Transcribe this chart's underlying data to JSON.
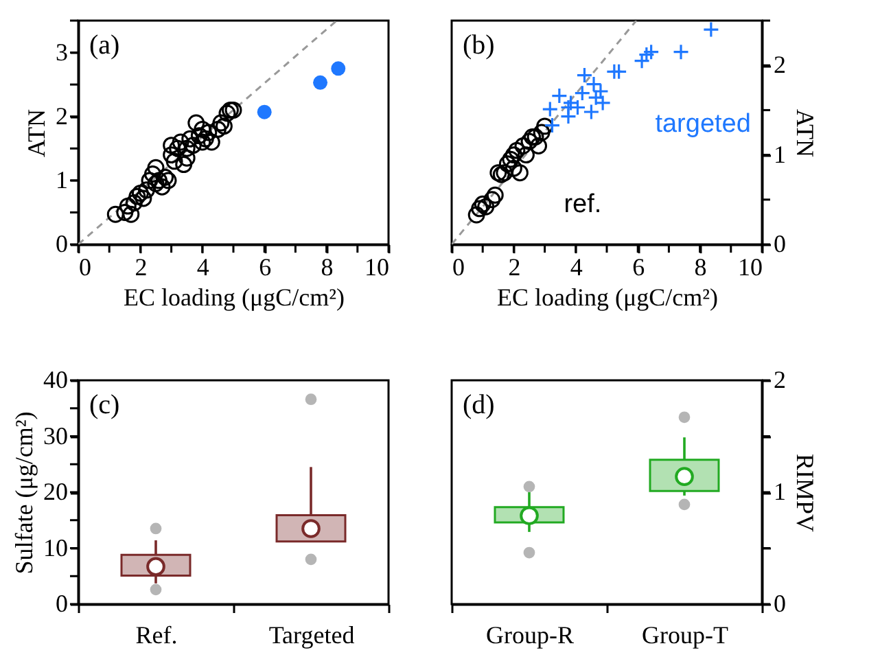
{
  "chart_data": [
    {
      "type": "scatter",
      "annotations": [
        "(a)"
      ],
      "xlabel": "EC loading (μgC/cm²)",
      "ylabel": "ATN",
      "xlim": [
        0,
        10
      ],
      "ylim": [
        0,
        3.5
      ],
      "xticks": [
        0,
        {
          "value": 1,
          "label": null
        },
        2,
        {
          "value": 3,
          "label": null
        },
        4,
        {
          "value": 5,
          "label": null
        },
        6,
        {
          "value": 7,
          "label": null
        },
        8,
        {
          "value": 9,
          "label": null
        },
        10
      ],
      "yticks": [
        0,
        {
          "value": 0.5,
          "label": null
        },
        1,
        {
          "value": 1.5,
          "label": null
        },
        2,
        {
          "value": 2.5,
          "label": null
        },
        3,
        {
          "value": 3.5,
          "label": null
        }
      ],
      "grid": false,
      "series": [
        {
          "type": "line",
          "color": "#999999",
          "line_style": "dashed",
          "marker": "none",
          "x": [
            0,
            8.33
          ],
          "values": [
            0,
            3.5
          ]
        },
        {
          "color": "#000000",
          "marker": "circle",
          "x": [
            1.2,
            1.5,
            1.6,
            1.7,
            1.8,
            1.9,
            2.0,
            2.1,
            2.2,
            2.3,
            2.4,
            2.5,
            2.5,
            2.6,
            2.7,
            2.8,
            2.9,
            3.0,
            3.0,
            3.1,
            3.2,
            3.3,
            3.4,
            3.5,
            3.5,
            3.6,
            3.7,
            3.8,
            3.9,
            4.0,
            4.0,
            4.1,
            4.2,
            4.3,
            4.5,
            4.6,
            4.7,
            4.8,
            4.9,
            5.0
          ],
          "values": [
            0.47,
            0.5,
            0.6,
            0.47,
            0.65,
            0.75,
            0.8,
            0.72,
            0.85,
            1.0,
            1.1,
            1.2,
            0.95,
            1.0,
            0.9,
            1.05,
            1.0,
            1.4,
            1.55,
            1.3,
            1.5,
            1.6,
            1.25,
            1.35,
            1.5,
            1.65,
            1.55,
            1.9,
            1.7,
            1.6,
            1.8,
            1.65,
            1.75,
            1.6,
            1.8,
            1.9,
            1.85,
            2.05,
            2.1,
            2.1
          ]
        },
        {
          "color": "#1f78ff",
          "marker": "circle",
          "x": [
            6.0,
            7.8,
            8.38
          ],
          "values": [
            2.07,
            2.53,
            2.75
          ]
        }
      ]
    },
    {
      "type": "scatter",
      "annotations": [
        "(b)"
      ],
      "xlabel": "EC loading (μgC/cm²)",
      "ylabel": "ATN",
      "xlim": [
        0,
        10
      ],
      "ylim": [
        0,
        2.5
      ],
      "xticks": [
        0,
        {
          "value": 1,
          "label": null
        },
        2,
        {
          "value": 3,
          "label": null
        },
        4,
        {
          "value": 5,
          "label": null
        },
        6,
        {
          "value": 7,
          "label": null
        },
        8,
        {
          "value": 9,
          "label": null
        },
        10
      ],
      "yticks": [
        0,
        {
          "value": 0.5,
          "label": null
        },
        1,
        {
          "value": 1.5,
          "label": null
        },
        2,
        {
          "value": 2.5,
          "label": null
        }
      ],
      "grid": false,
      "series": [
        {
          "type": "line",
          "color": "#999999",
          "line_style": "dashed",
          "marker": "none",
          "x": [
            0,
            5.95
          ],
          "values": [
            0,
            2.5
          ]
        },
        {
          "name": "ref.",
          "color": "#000000",
          "marker": "circle",
          "x": [
            0.8,
            0.9,
            1.0,
            1.1,
            1.3,
            1.4,
            1.5,
            1.6,
            1.7,
            1.8,
            1.9,
            2.0,
            2.0,
            2.1,
            2.2,
            2.3,
            2.4,
            2.5,
            2.6,
            2.7,
            2.8,
            2.9,
            3.0
          ],
          "values": [
            0.33,
            0.4,
            0.45,
            0.42,
            0.5,
            0.55,
            0.8,
            0.78,
            0.8,
            0.9,
            0.95,
            1.0,
            0.85,
            1.05,
            0.8,
            1.1,
            1.0,
            1.15,
            1.2,
            1.2,
            1.1,
            1.25,
            1.32
          ]
        },
        {
          "name": "targeted",
          "color": "#1f78ff",
          "marker": "cross",
          "x": [
            3.17,
            3.47,
            3.76,
            3.76,
            3.84,
            4.06,
            4.21,
            4.28,
            4.5,
            4.58,
            4.65,
            4.8,
            4.87,
            5.24,
            5.39,
            6.13,
            6.28,
            6.43,
            7.39,
            8.36,
            3.24
          ],
          "values": [
            1.51,
            1.66,
            1.43,
            1.53,
            1.58,
            1.53,
            1.69,
            1.89,
            1.48,
            1.79,
            1.64,
            1.71,
            1.58,
            1.93,
            1.93,
            2.05,
            2.12,
            2.15,
            2.15,
            2.4,
            1.33
          ]
        }
      ]
    },
    {
      "type": "box",
      "annotations": [
        "(c)"
      ],
      "ylabel": "Sulfate (μg/cm²)",
      "categories": [
        "Ref.",
        "Targeted"
      ],
      "ylim": [
        0,
        40
      ],
      "yticks": [
        0,
        {
          "value": 5,
          "label": null
        },
        10,
        {
          "value": 15,
          "label": null
        },
        20,
        {
          "value": 25,
          "label": null
        },
        30,
        {
          "value": 35,
          "label": null
        },
        40
      ],
      "grid": false,
      "series": [
        {
          "color": "#7a2a2a",
          "boxes": [
            {
              "low": 3.7,
              "q1": 5.1,
              "median": 6.7,
              "q3": 8.8,
              "high": 11.4,
              "outliers": [
                13.5,
                2.6
              ]
            },
            {
              "low": 11.2,
              "q1": 11.2,
              "median": 13.5,
              "q3": 15.9,
              "high": 24.5,
              "outliers": [
                36.6,
                8.0
              ]
            }
          ]
        }
      ]
    },
    {
      "type": "box",
      "annotations": [
        "(d)"
      ],
      "ylabel": "RIMPV",
      "categories": [
        "Group-R",
        "Group-T"
      ],
      "ylim": [
        0,
        2
      ],
      "yticks": [
        0,
        {
          "value": 0.5,
          "label": null
        },
        1,
        {
          "value": 1.5,
          "label": null
        },
        2
      ],
      "grid": false,
      "series": [
        {
          "color": "#22aa22",
          "boxes": [
            {
              "low": 0.645,
              "q1": 0.73,
              "median": 0.79,
              "q3": 0.866,
              "high": 1.0,
              "outliers": [
                1.05,
                0.46
              ]
            },
            {
              "low": 0.97,
              "q1": 1.01,
              "median": 1.14,
              "q3": 1.29,
              "high": 1.49,
              "outliers": [
                1.67,
                0.89
              ]
            }
          ]
        }
      ]
    }
  ]
}
